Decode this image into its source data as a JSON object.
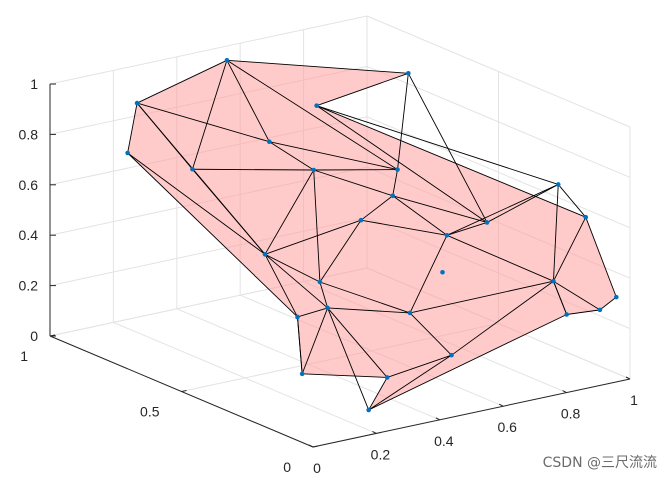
{
  "chart_data": {
    "type": "scatter",
    "mark": "3d-convex-hull-with-points",
    "title": "",
    "xlabel": "",
    "ylabel": "",
    "zlabel": "",
    "xlim": [
      0,
      1
    ],
    "ylim": [
      0,
      1
    ],
    "zlim": [
      0,
      1
    ],
    "x_ticks": [
      "0",
      "0.2",
      "0.4",
      "0.6",
      "0.8",
      "1"
    ],
    "y_ticks": [
      "0",
      "0.5",
      "1"
    ],
    "z_ticks": [
      "0",
      "0.2",
      "0.4",
      "0.6",
      "0.8",
      "1"
    ],
    "grid": true,
    "colors": {
      "face": "#ff9e9e",
      "edge": "#000000",
      "point": "#0072bd",
      "grid": "#e3e3e3",
      "axis": "#262626"
    },
    "points": [
      {
        "x": 0.2,
        "y": 0.91,
        "z": 0.91
      },
      {
        "x": 0.22,
        "y": 0.97,
        "z": 0.68
      },
      {
        "x": 0.5,
        "y": 0.93,
        "z": 0.99
      },
      {
        "x": 0.84,
        "y": 0.65,
        "z": 0.97
      },
      {
        "x": 0.7,
        "y": 0.83,
        "z": 0.8
      },
      {
        "x": 0.45,
        "y": 0.36,
        "z": 0.62
      },
      {
        "x": 0.14,
        "y": 0.21,
        "z": 0.16
      },
      {
        "x": 0.28,
        "y": 0.52,
        "z": 0.46
      },
      {
        "x": 0.42,
        "y": 0.48,
        "z": 0.33
      },
      {
        "x": 0.64,
        "y": 0.45,
        "z": 0.73
      },
      {
        "x": 0.6,
        "y": 0.42,
        "z": 0.65
      },
      {
        "x": 0.63,
        "y": 0.25,
        "z": 0.56
      },
      {
        "x": 0.69,
        "y": 0.17,
        "z": 0.63
      },
      {
        "x": 0.84,
        "y": 0.08,
        "z": 0.78
      },
      {
        "x": 0.3,
        "y": 0.82,
        "z": 0.66
      },
      {
        "x": 0.2,
        "y": 0.3,
        "z": 0.33
      },
      {
        "x": 0.32,
        "y": 0.33,
        "z": 0.32
      },
      {
        "x": 0.48,
        "y": 0.21,
        "z": 0.31
      },
      {
        "x": 0.52,
        "y": 0.1,
        "z": 0.18
      },
      {
        "x": 0.8,
        "y": 0.05,
        "z": 0.42
      },
      {
        "x": 0.96,
        "y": 0.12,
        "z": 0.6
      },
      {
        "x": 0.93,
        "y": 0.03,
        "z": 0.28
      },
      {
        "x": 0.99,
        "y": 0.04,
        "z": 0.31
      },
      {
        "x": 0.85,
        "y": 0.06,
        "z": 0.27
      },
      {
        "x": 0.36,
        "y": 0.6,
        "z": 0.85
      },
      {
        "x": 0.5,
        "y": 0.6,
        "z": 0.7
      },
      {
        "x": 0.45,
        "y": 0.05,
        "z": 0.55
      },
      {
        "x": 0.4,
        "y": 0.2,
        "z": 0.08
      },
      {
        "x": 0.3,
        "y": 0.15,
        "z": 0.0
      }
    ],
    "hull_edges": [
      [
        0,
        2
      ],
      [
        2,
        3
      ],
      [
        3,
        4
      ],
      [
        4,
        20
      ],
      [
        20,
        22
      ],
      [
        22,
        21
      ],
      [
        21,
        23
      ],
      [
        23,
        28
      ],
      [
        28,
        27
      ],
      [
        27,
        6
      ],
      [
        6,
        15
      ],
      [
        15,
        1
      ],
      [
        1,
        0
      ],
      [
        0,
        7
      ],
      [
        0,
        14
      ],
      [
        0,
        24
      ],
      [
        2,
        14
      ],
      [
        2,
        24
      ],
      [
        2,
        9
      ],
      [
        3,
        9
      ],
      [
        3,
        12
      ],
      [
        4,
        12
      ],
      [
        4,
        13
      ],
      [
        13,
        20
      ],
      [
        13,
        19
      ],
      [
        13,
        11
      ],
      [
        12,
        11
      ],
      [
        12,
        10
      ],
      [
        9,
        10
      ],
      [
        9,
        24
      ],
      [
        24,
        25
      ],
      [
        25,
        9
      ],
      [
        25,
        14
      ],
      [
        14,
        7
      ],
      [
        7,
        15
      ],
      [
        7,
        16
      ],
      [
        16,
        6
      ],
      [
        16,
        27
      ],
      [
        16,
        28
      ],
      [
        15,
        6
      ],
      [
        7,
        25
      ],
      [
        25,
        10
      ],
      [
        10,
        5
      ],
      [
        5,
        8
      ],
      [
        8,
        7
      ],
      [
        8,
        16
      ],
      [
        8,
        17
      ],
      [
        17,
        16
      ],
      [
        17,
        18
      ],
      [
        18,
        28
      ],
      [
        18,
        19
      ],
      [
        19,
        21
      ],
      [
        19,
        23
      ],
      [
        11,
        19
      ],
      [
        17,
        11
      ],
      [
        11,
        5
      ],
      [
        5,
        7
      ],
      [
        17,
        19
      ],
      [
        20,
        19
      ],
      [
        23,
        19
      ],
      [
        12,
        13
      ],
      [
        10,
        11
      ],
      [
        8,
        25
      ],
      [
        1,
        7
      ],
      [
        15,
        16
      ],
      [
        18,
        27
      ]
    ]
  },
  "watermark": "CSDN @三尺流流"
}
